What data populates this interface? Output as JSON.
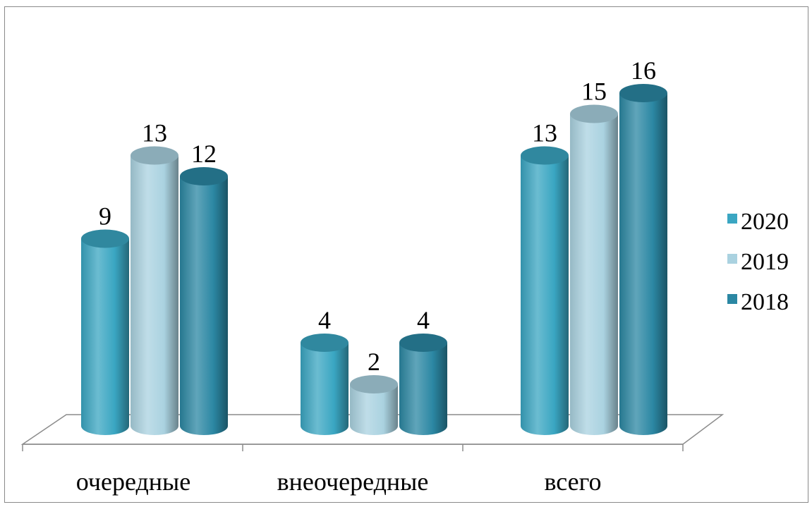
{
  "chart_data": {
    "type": "bar",
    "style": "3d-cylinder",
    "title": "",
    "xlabel": "",
    "ylabel": "",
    "categories": [
      "очередные",
      "внеочередные",
      "всего"
    ],
    "series": [
      {
        "name": "2020",
        "values": [
          9,
          4,
          13
        ],
        "color": "#3aa6c2"
      },
      {
        "name": "2019",
        "values": [
          13,
          2,
          15
        ],
        "color": "#aad2e0"
      },
      {
        "name": "2018",
        "values": [
          12,
          4,
          16
        ],
        "color": "#2b87a3"
      }
    ],
    "ylim": [
      0,
      16
    ],
    "grid": false,
    "legend_position": "right"
  }
}
